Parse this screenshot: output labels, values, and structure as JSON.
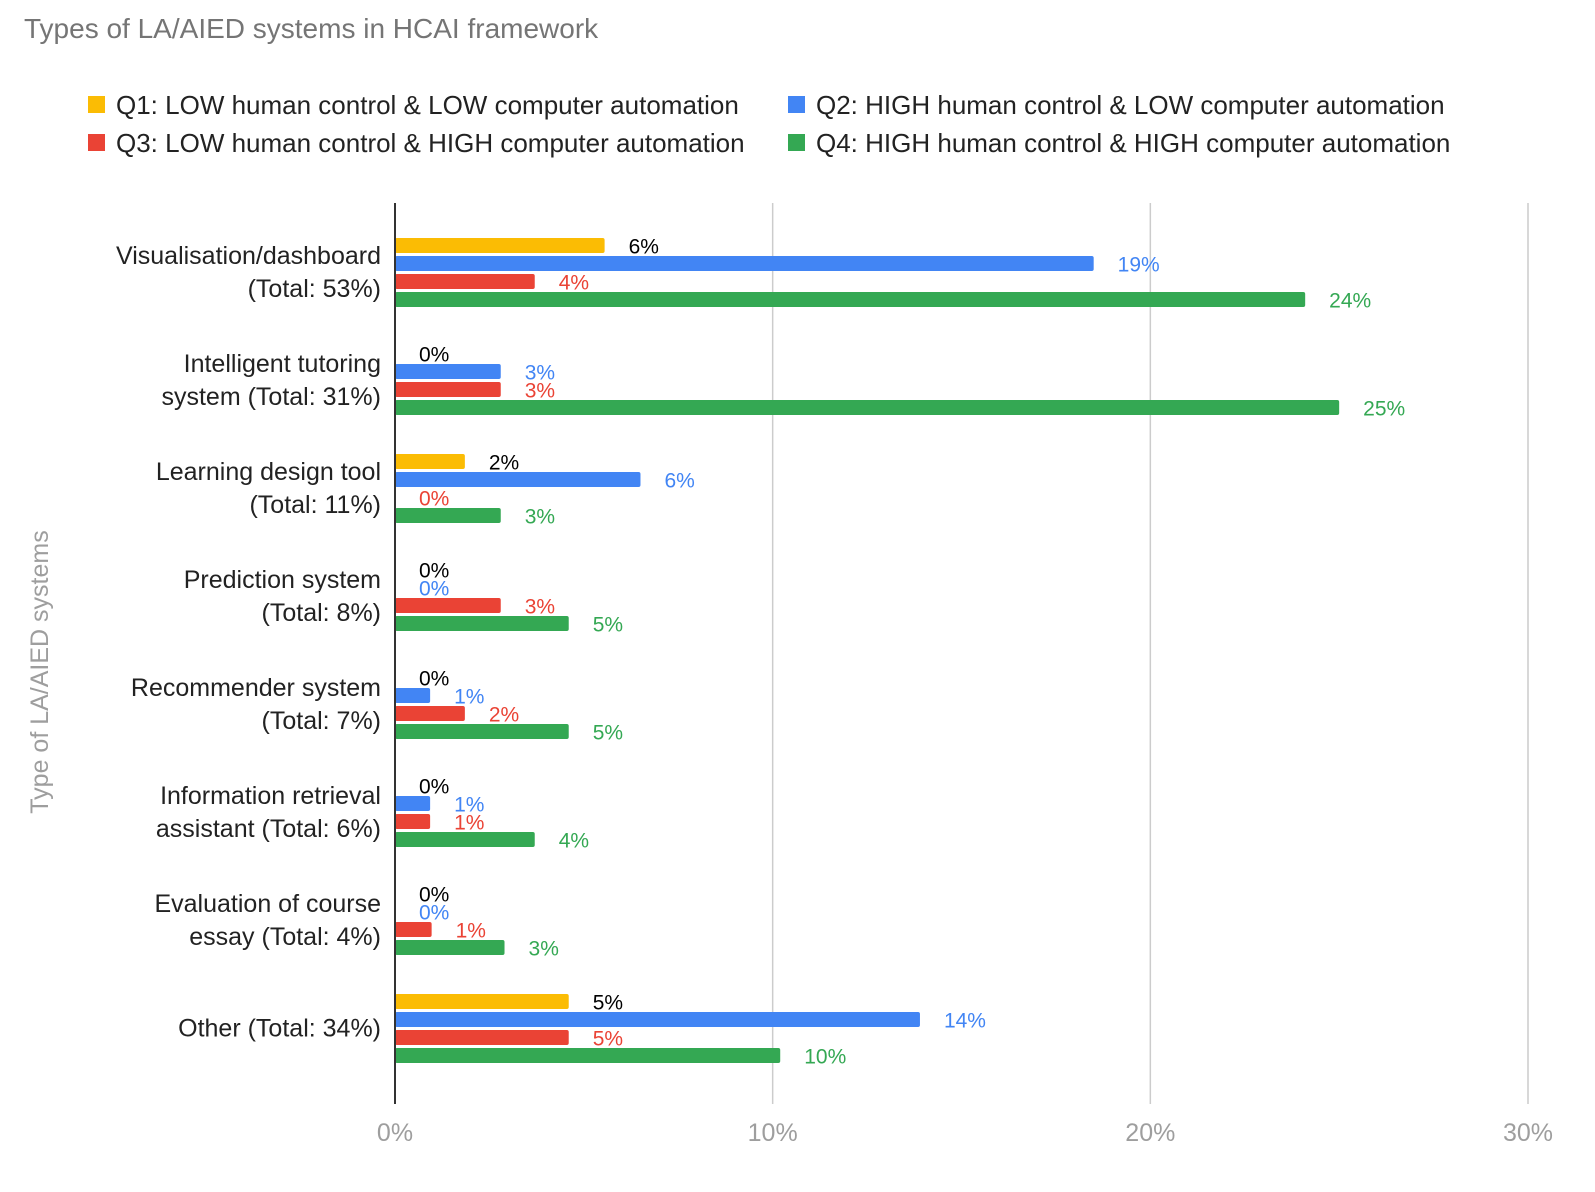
{
  "chart_data": {
    "type": "bar",
    "orientation": "horizontal",
    "title": "Types of LA/AIED systems in HCAI framework",
    "ylabel": "Type of LA/AIED systems",
    "xlabel": "",
    "xlim": [
      0,
      30
    ],
    "xticks": [
      "0%",
      "10%",
      "20%",
      "30%"
    ],
    "grid": true,
    "legend_position": "top",
    "categories": [
      [
        "Visualisation/dashboard",
        "(Total: 53%)"
      ],
      [
        "Intelligent tutoring",
        "system (Total: 31%)"
      ],
      [
        "Learning design tool",
        "(Total: 11%)"
      ],
      [
        "Prediction system",
        "(Total: 8%)"
      ],
      [
        "Recommender system",
        "(Total: 7%)"
      ],
      [
        "Information retrieval",
        "assistant (Total: 6%)"
      ],
      [
        "Evaluation of course",
        "essay (Total: 4%)"
      ],
      [
        "Other (Total: 34%)"
      ]
    ],
    "series": [
      {
        "name": "Q1: LOW human control & LOW computer automation",
        "color": "#fbbc04",
        "label_color": "#000000",
        "values": [
          5.55,
          0,
          1.85,
          0,
          0,
          0,
          0,
          4.6
        ],
        "labels": [
          "6%",
          "0%",
          "2%",
          "0%",
          "0%",
          "0%",
          "0%",
          "5%"
        ]
      },
      {
        "name": "Q2: HIGH human control & LOW computer automation",
        "color": "#4285f4",
        "label_color": "#4285f4",
        "values": [
          18.5,
          2.8,
          6.5,
          0,
          0.93,
          0.93,
          0,
          13.9
        ],
        "labels": [
          "19%",
          "3%",
          "6%",
          "0%",
          "1%",
          "1%",
          "0%",
          "14%"
        ]
      },
      {
        "name": "Q3: LOW human control & HIGH computer automation",
        "color": "#ea4335",
        "label_color": "#ea4335",
        "values": [
          3.7,
          2.8,
          0,
          2.8,
          1.85,
          0.93,
          0.97,
          4.6
        ],
        "labels": [
          "4%",
          "3%",
          "0%",
          "3%",
          "2%",
          "1%",
          "1%",
          "5%"
        ]
      },
      {
        "name": "Q4: HIGH human control & HIGH computer automation",
        "color": "#34a853",
        "label_color": "#34a853",
        "values": [
          24.1,
          25.0,
          2.8,
          4.6,
          4.6,
          3.7,
          2.9,
          10.2
        ],
        "labels": [
          "24%",
          "25%",
          "3%",
          "5%",
          "5%",
          "4%",
          "3%",
          "10%"
        ]
      }
    ]
  }
}
